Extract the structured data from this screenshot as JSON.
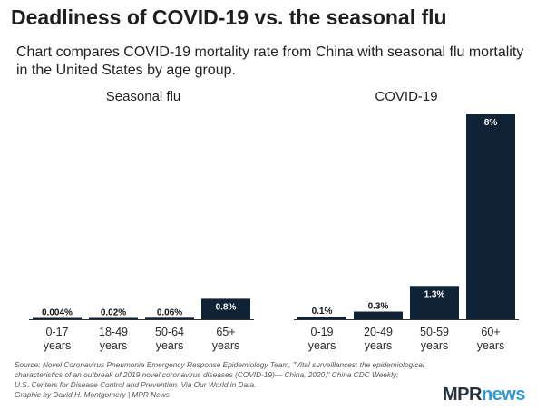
{
  "title": "Deadliness of COVID-19 vs. the seasonal flu",
  "subtitle": "Chart compares COVID-19 mortality rate from China with seasonal flu mortality in the United States by age group.",
  "colors": {
    "bar": "#0f2236",
    "bar_label": "#ffffff",
    "outside_label": "#111111",
    "axis": "#333333"
  },
  "chart_data": [
    {
      "type": "bar",
      "title": "Seasonal flu",
      "categories": [
        "0-17\nyears",
        "18-49\nyears",
        "50-64\nyears",
        "65+\nyears"
      ],
      "values": [
        0.004,
        0.02,
        0.06,
        0.8
      ],
      "labels": [
        "0.004%",
        "0.02%",
        "0.06%",
        "0.8%"
      ],
      "ylim": [
        0,
        8
      ]
    },
    {
      "type": "bar",
      "title": "COVID-19",
      "categories": [
        "0-19\nyears",
        "20-49\nyears",
        "50-59\nyears",
        "60+\nyears"
      ],
      "values": [
        0.1,
        0.3,
        1.3,
        8
      ],
      "labels": [
        "0.1%",
        "0.3%",
        "1.3%",
        "8%"
      ],
      "ylim": [
        0,
        8
      ]
    }
  ],
  "source_lines": [
    "Source: Novel Coronavirus Pneumonia Emergency Response Epidemiology Team, \"Vital surveillances: the epidemiological",
    "characteristics of an outbreak of 2019 novel coronavirus diseases (COVID-19)— China, 2020,\" China CDC Weekly;",
    "U.S. Centers for Disease Control and Prevention. Via Our World in Data.",
    "Graphic by David H. Montgomery | MPR News"
  ],
  "logo": {
    "mpr": "MPR",
    "news": "news"
  }
}
